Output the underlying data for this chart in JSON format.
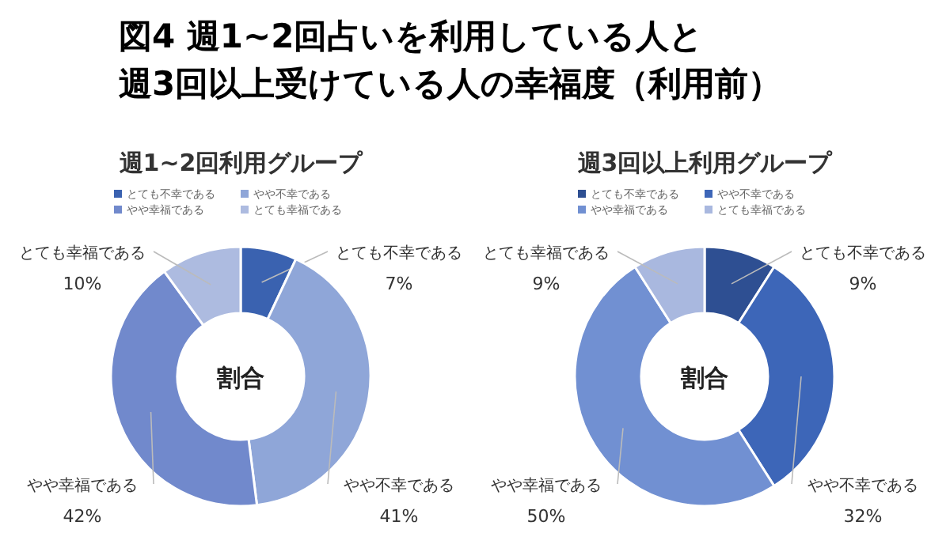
{
  "chart_data": [
    {
      "type": "other",
      "title": "図4 週1~2回占いを利用している人と週3回以上受けている人の幸福度（利用前）"
    },
    {
      "type": "donut",
      "title": "週1~2回利用グループ",
      "categories": [
        "とても不幸である",
        "やや不幸である",
        "やや幸福である",
        "とても幸福である"
      ],
      "values": [
        7,
        41,
        42,
        10
      ],
      "value_labels": [
        "7%",
        "41%",
        "42%",
        "10%"
      ],
      "colors": [
        "#3a62b0",
        "#8fa6d8",
        "#7189cc",
        "#adbbe0"
      ],
      "legend": "top",
      "annotations": [
        "割合"
      ]
    },
    {
      "type": "donut",
      "title": "週3回以上利用グループ",
      "categories": [
        "とても不幸である",
        "やや不幸である",
        "やや幸福である",
        "とても幸福である"
      ],
      "values": [
        9,
        32,
        50,
        9
      ],
      "value_labels": [
        "9%",
        "32%",
        "50%",
        "9%"
      ],
      "colors": [
        "#2e4f92",
        "#3d66b8",
        "#7190d2",
        "#a9b8df"
      ],
      "legend": "top",
      "annotations": [
        "割合"
      ]
    }
  ]
}
